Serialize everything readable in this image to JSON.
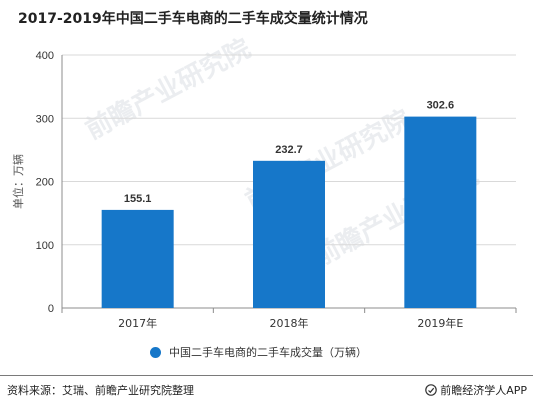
{
  "title": "2017-2019年中国二手车电商的二手车成交量统计情况",
  "watermark_text": "前瞻产业研究院",
  "legend_label": "中国二手车电商的二手车成交量（万辆）",
  "footer": {
    "source": "资料来源：艾瑞、前瞻产业研究院整理",
    "brand": "前瞻经济学人APP"
  },
  "colors": {
    "bar": "#1677c9",
    "grid": "#d9d9d9",
    "axis": "#8c8c8c"
  },
  "chart_data": {
    "type": "bar",
    "categories": [
      "2017年",
      "2018年",
      "2019年E"
    ],
    "series": [
      {
        "name": "中国二手车电商的二手车成交量（万辆）",
        "values": [
          155.1,
          232.7,
          302.6
        ]
      }
    ],
    "value_labels": [
      "155.1",
      "232.7",
      "302.6"
    ],
    "ylabel": "单位：万辆",
    "ylim": [
      0,
      400
    ],
    "yticks": [
      0,
      100,
      200,
      300,
      400
    ],
    "grid": true,
    "legend_position": "bottom"
  }
}
